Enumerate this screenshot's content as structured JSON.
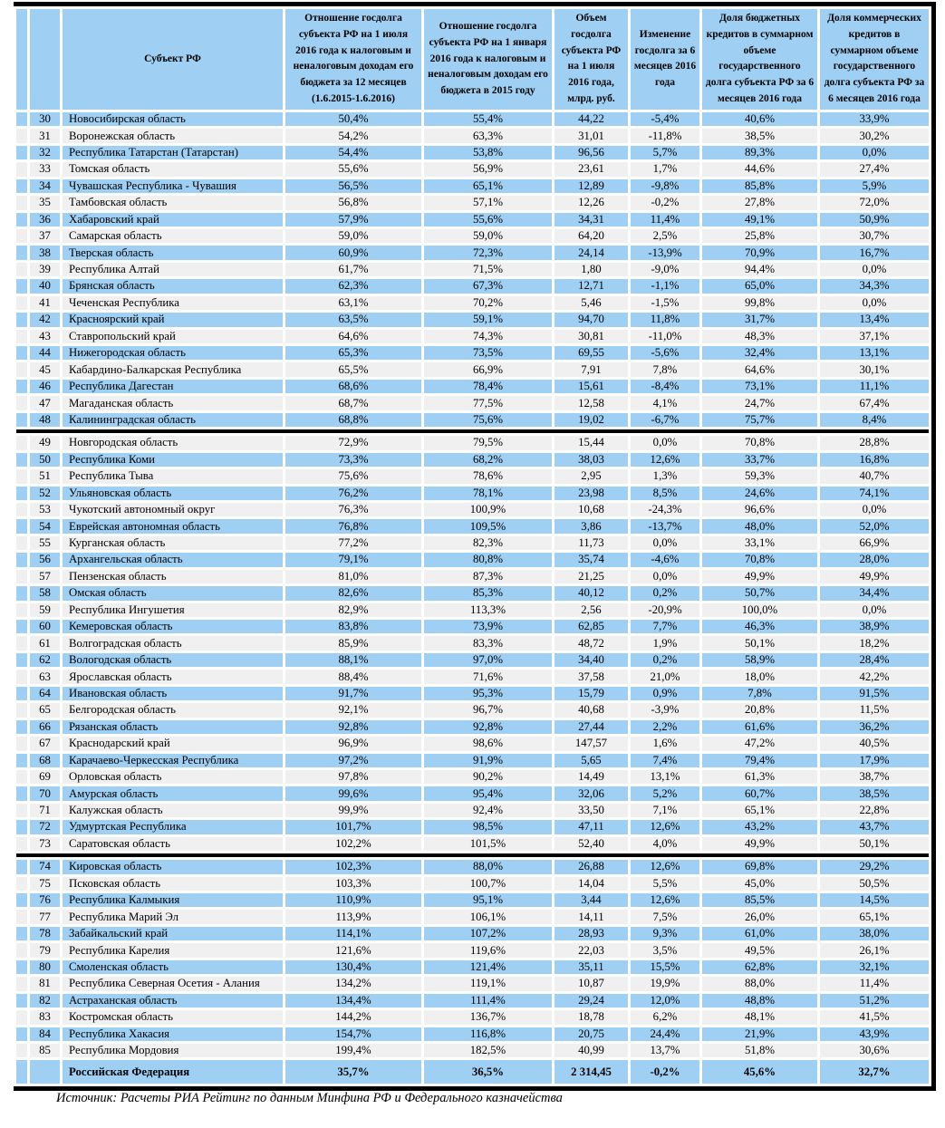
{
  "colors": {
    "row_blue": "#9fcff3",
    "row_alt": "#f0f0f0",
    "separator": "#000000",
    "border": "#000000"
  },
  "table": {
    "headers": [
      "",
      "Субъект РФ",
      "Отношение госдолга субъекта РФ на 1 июля 2016 года к налоговым и неналоговым доходам его бюджета за 12 месяцев (1.6.2015-1.6.2016)",
      "Отношение госдолга субъекта РФ на 1 января 2016 года к налоговым и неналоговым доходам его бюджета в 2015 году",
      "Объем госдолга субъекта РФ на 1 июля 2016 года, млрд. руб.",
      "Изменение госдолга за 6 месяцев 2016 года",
      "Доля бюджетных кредитов в суммарном объеме государственного долга субъекта РФ за 6 месяцев 2016 года",
      "Доля коммерческих кредитов в суммарном объеме государственного долга субъекта РФ за 6 месяцев 2016 года"
    ],
    "rows": [
      [
        "30",
        "Новосибирская область",
        "50,4%",
        "55,4%",
        "44,22",
        "-5,4%",
        "40,6%",
        "33,9%"
      ],
      [
        "31",
        "Воронежская область",
        "54,2%",
        "63,3%",
        "31,01",
        "-11,8%",
        "38,5%",
        "30,2%"
      ],
      [
        "32",
        "Республика Татарстан (Татарстан)",
        "54,4%",
        "53,8%",
        "96,56",
        "5,7%",
        "89,3%",
        "0,0%"
      ],
      [
        "33",
        "Томская область",
        "55,6%",
        "56,9%",
        "23,61",
        "1,7%",
        "44,6%",
        "27,4%"
      ],
      [
        "34",
        "Чувашская Республика - Чувашия",
        "56,5%",
        "65,1%",
        "12,89",
        "-9,8%",
        "85,8%",
        "5,9%"
      ],
      [
        "35",
        "Тамбовская область",
        "56,8%",
        "57,1%",
        "12,26",
        "-0,2%",
        "27,8%",
        "72,0%"
      ],
      [
        "36",
        "Хабаровский край",
        "57,9%",
        "55,6%",
        "34,31",
        "11,4%",
        "49,1%",
        "50,9%"
      ],
      [
        "37",
        "Самарская область",
        "59,0%",
        "59,0%",
        "64,20",
        "2,5%",
        "25,8%",
        "30,7%"
      ],
      [
        "38",
        "Тверская область",
        "60,9%",
        "72,3%",
        "24,14",
        "-13,9%",
        "70,9%",
        "16,7%"
      ],
      [
        "39",
        "Республика Алтай",
        "61,7%",
        "71,5%",
        "1,80",
        "-9,0%",
        "94,4%",
        "0,0%"
      ],
      [
        "40",
        "Брянская область",
        "62,3%",
        "67,3%",
        "12,71",
        "-1,1%",
        "65,0%",
        "34,3%"
      ],
      [
        "41",
        "Чеченская Республика",
        "63,1%",
        "70,2%",
        "5,46",
        "-1,5%",
        "99,8%",
        "0,0%"
      ],
      [
        "42",
        "Красноярский край",
        "63,5%",
        "59,1%",
        "94,70",
        "11,8%",
        "31,7%",
        "13,4%"
      ],
      [
        "43",
        "Ставропольский край",
        "64,6%",
        "74,3%",
        "30,81",
        "-11,0%",
        "48,3%",
        "37,1%"
      ],
      [
        "44",
        "Нижегородская область",
        "65,3%",
        "73,5%",
        "69,55",
        "-5,6%",
        "32,4%",
        "13,1%"
      ],
      [
        "45",
        "Кабардино-Балкарская Республика",
        "65,5%",
        "66,9%",
        "7,91",
        "7,8%",
        "64,6%",
        "30,1%"
      ],
      [
        "46",
        "Республика Дагестан",
        "68,6%",
        "78,4%",
        "15,61",
        "-8,4%",
        "73,1%",
        "11,1%"
      ],
      [
        "47",
        "Магаданская область",
        "68,7%",
        "77,5%",
        "12,58",
        "4,1%",
        "24,7%",
        "67,4%"
      ],
      [
        "48",
        "Калининградская область",
        "68,8%",
        "75,6%",
        "19,02",
        "-6,7%",
        "75,7%",
        "8,4%"
      ],
      [
        "49",
        "Новгородская область",
        "72,9%",
        "79,5%",
        "15,44",
        "0,0%",
        "70,8%",
        "28,8%"
      ],
      [
        "50",
        "Республика Коми",
        "73,3%",
        "68,2%",
        "38,03",
        "12,6%",
        "33,7%",
        "16,8%"
      ],
      [
        "51",
        "Республика Тыва",
        "75,6%",
        "78,6%",
        "2,95",
        "1,3%",
        "59,3%",
        "40,7%"
      ],
      [
        "52",
        "Ульяновская область",
        "76,2%",
        "78,1%",
        "23,98",
        "8,5%",
        "24,6%",
        "74,1%"
      ],
      [
        "53",
        "Чукотский автономный округ",
        "76,3%",
        "100,9%",
        "10,68",
        "-24,3%",
        "96,6%",
        "0,0%"
      ],
      [
        "54",
        "Еврейская автономная область",
        "76,8%",
        "109,5%",
        "3,86",
        "-13,7%",
        "48,0%",
        "52,0%"
      ],
      [
        "55",
        "Курганская область",
        "77,2%",
        "82,3%",
        "11,73",
        "0,0%",
        "33,1%",
        "66,9%"
      ],
      [
        "56",
        "Архангельская область",
        "79,1%",
        "80,8%",
        "35,74",
        "-4,6%",
        "70,8%",
        "28,0%"
      ],
      [
        "57",
        "Пензенская область",
        "81,0%",
        "87,3%",
        "21,25",
        "0,0%",
        "49,9%",
        "49,9%"
      ],
      [
        "58",
        "Омская область",
        "82,6%",
        "85,3%",
        "40,12",
        "0,2%",
        "50,7%",
        "34,4%"
      ],
      [
        "59",
        "Республика Ингушетия",
        "82,9%",
        "113,3%",
        "2,56",
        "-20,9%",
        "100,0%",
        "0,0%"
      ],
      [
        "60",
        "Кемеровская область",
        "83,8%",
        "73,9%",
        "62,85",
        "7,7%",
        "46,3%",
        "38,9%"
      ],
      [
        "61",
        "Волгоградская область",
        "85,9%",
        "83,3%",
        "48,72",
        "1,9%",
        "50,1%",
        "18,2%"
      ],
      [
        "62",
        "Вологодская область",
        "88,1%",
        "97,0%",
        "34,40",
        "0,2%",
        "58,9%",
        "28,4%"
      ],
      [
        "63",
        "Ярославская область",
        "88,4%",
        "71,6%",
        "37,58",
        "21,0%",
        "18,0%",
        "42,2%"
      ],
      [
        "64",
        "Ивановская область",
        "91,7%",
        "95,3%",
        "15,79",
        "0,9%",
        "7,8%",
        "91,5%"
      ],
      [
        "65",
        "Белгородская область",
        "92,1%",
        "96,7%",
        "40,68",
        "-3,9%",
        "20,8%",
        "11,5%"
      ],
      [
        "66",
        "Рязанская область",
        "92,8%",
        "92,8%",
        "27,44",
        "2,2%",
        "61,6%",
        "36,2%"
      ],
      [
        "67",
        "Краснодарский край",
        "96,9%",
        "98,6%",
        "147,57",
        "1,6%",
        "47,2%",
        "40,5%"
      ],
      [
        "68",
        "Карачаево-Черкесская Республика",
        "97,2%",
        "91,9%",
        "5,65",
        "7,4%",
        "79,4%",
        "17,9%"
      ],
      [
        "69",
        "Орловская область",
        "97,8%",
        "90,2%",
        "14,49",
        "13,1%",
        "61,3%",
        "38,7%"
      ],
      [
        "70",
        "Амурская область",
        "99,6%",
        "95,4%",
        "32,06",
        "5,2%",
        "60,7%",
        "38,5%"
      ],
      [
        "71",
        "Калужская область",
        "99,9%",
        "92,4%",
        "33,50",
        "7,1%",
        "65,1%",
        "22,8%"
      ],
      [
        "72",
        "Удмуртская Республика",
        "101,7%",
        "98,5%",
        "47,11",
        "12,6%",
        "43,2%",
        "43,7%"
      ],
      [
        "73",
        "Саратовская область",
        "102,2%",
        "101,5%",
        "52,40",
        "4,0%",
        "49,9%",
        "50,1%"
      ],
      [
        "74",
        "Кировская область",
        "102,3%",
        "88,0%",
        "26,88",
        "12,6%",
        "69,8%",
        "29,2%"
      ],
      [
        "75",
        "Псковская область",
        "103,3%",
        "100,7%",
        "14,04",
        "5,5%",
        "45,0%",
        "50,5%"
      ],
      [
        "76",
        "Республика Калмыкия",
        "110,9%",
        "95,1%",
        "3,44",
        "12,6%",
        "85,5%",
        "14,5%"
      ],
      [
        "77",
        "Республика Марий Эл",
        "113,9%",
        "106,1%",
        "14,11",
        "7,5%",
        "26,0%",
        "65,1%"
      ],
      [
        "78",
        "Забайкальский край",
        "114,1%",
        "107,2%",
        "28,93",
        "9,3%",
        "61,0%",
        "38,0%"
      ],
      [
        "79",
        "Республика Карелия",
        "121,6%",
        "119,6%",
        "22,03",
        "3,5%",
        "49,5%",
        "26,1%"
      ],
      [
        "80",
        "Смоленская область",
        "130,4%",
        "121,4%",
        "35,11",
        "15,5%",
        "62,8%",
        "32,1%"
      ],
      [
        "81",
        "Республика Северная Осетия - Алания",
        "134,2%",
        "119,1%",
        "10,87",
        "19,9%",
        "88,0%",
        "11,4%"
      ],
      [
        "82",
        "Астраханская область",
        "134,4%",
        "111,4%",
        "29,24",
        "12,0%",
        "48,8%",
        "51,2%"
      ],
      [
        "83",
        "Костромская область",
        "144,2%",
        "136,7%",
        "18,78",
        "6,2%",
        "48,1%",
        "41,5%"
      ],
      [
        "84",
        "Республика Хакасия",
        "154,7%",
        "116,8%",
        "20,75",
        "24,4%",
        "21,9%",
        "43,9%"
      ],
      [
        "85",
        "Республика Мордовия",
        "199,4%",
        "182,5%",
        "40,99",
        "13,7%",
        "51,8%",
        "30,6%"
      ]
    ],
    "group_breaks_after": [
      "48",
      "73"
    ],
    "total_row": [
      "",
      "Российская Федерация",
      "35,7%",
      "36,5%",
      "2 314,45",
      "-0,2%",
      "45,6%",
      "32,7%"
    ]
  },
  "footer": {
    "source": "Источник: Расчеты РИА Рейтинг по данным Минфина РФ и Федерального казначейства"
  }
}
